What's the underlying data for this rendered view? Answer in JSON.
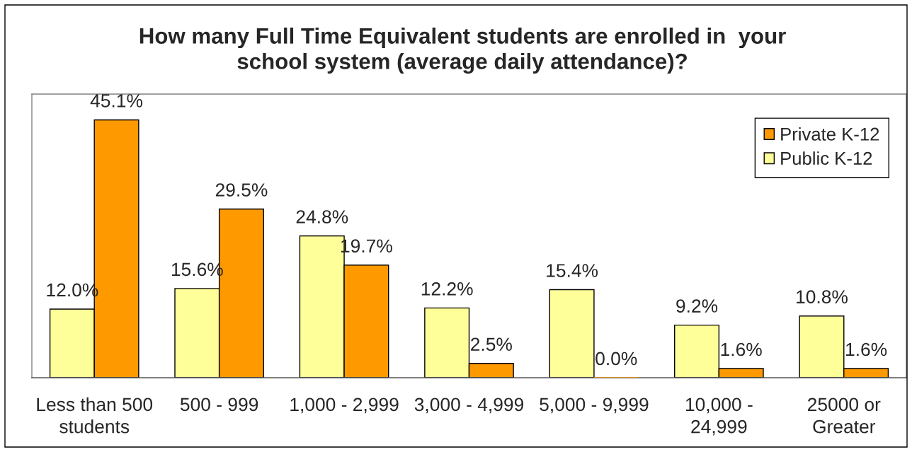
{
  "chart_data": {
    "type": "bar",
    "title": "How many Full Time Equivalent students are enrolled in  your\nschool system (average daily attendance)?",
    "categories": [
      "Less than 500\nstudents",
      "500 - 999",
      "1,000 - 2,999",
      "3,000 - 4,999",
      "5,000 - 9,999",
      "10,000 -\n24,999",
      "25000 or\nGreater"
    ],
    "series": [
      {
        "name": "Public K-12",
        "color": "#ffff99",
        "values": [
          12.0,
          15.6,
          24.8,
          12.2,
          15.4,
          9.2,
          10.8
        ],
        "value_labels": [
          "12.0%",
          "15.6%",
          "24.8%",
          "12.2%",
          "15.4%",
          "9.2%",
          "10.8%"
        ]
      },
      {
        "name": "Private K-12",
        "color": "#ff9900",
        "values": [
          45.1,
          29.5,
          19.7,
          2.5,
          0.0,
          1.6,
          1.6
        ],
        "value_labels": [
          "45.1%",
          "29.5%",
          "19.7%",
          "2.5%",
          "0.0%",
          "1.6%",
          "1.6%"
        ]
      }
    ],
    "legend": "top right"
  }
}
